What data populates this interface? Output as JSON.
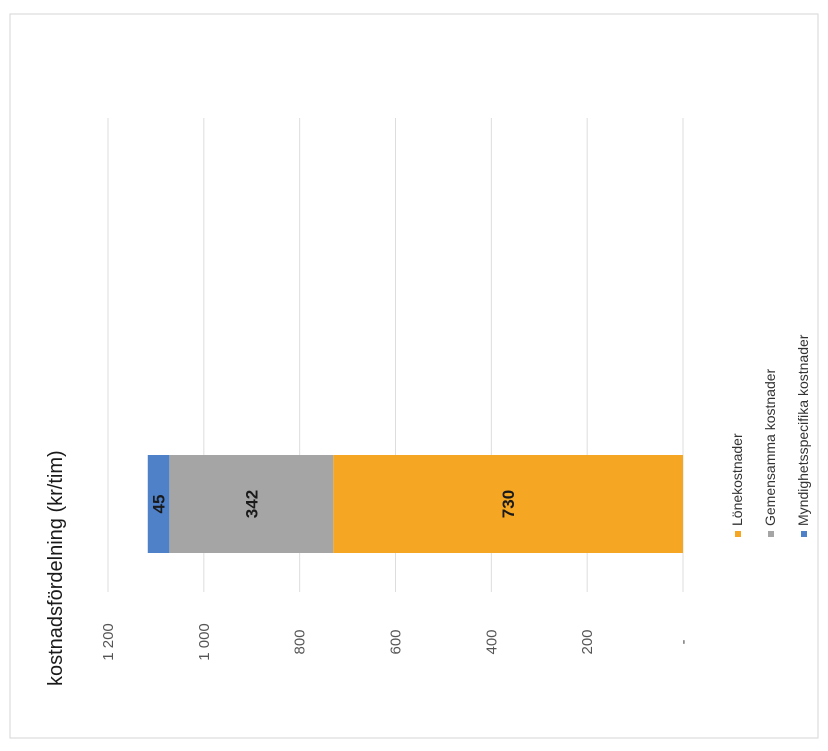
{
  "chart_data": {
    "type": "bar",
    "orientation": "vertical-stacked",
    "title": "kostnadsfördelning (kr/tim)",
    "categories": [
      ""
    ],
    "series": [
      {
        "name": "Lönekostnader",
        "values": [
          730
        ],
        "color": "#f5a623"
      },
      {
        "name": "Gemensamma kostnader",
        "values": [
          342
        ],
        "color": "#a5a5a5"
      },
      {
        "name": "Myndighetsspecifika kostnader",
        "values": [
          45
        ],
        "color": "#4f81c8"
      }
    ],
    "data_labels": [
      "730",
      "342",
      "45"
    ],
    "ylim": [
      0,
      1200
    ],
    "yticks": [
      "-",
      "200",
      "400",
      "600",
      "800",
      "1 000",
      "1 200"
    ],
    "grid": true,
    "legend": "bottom",
    "xlabel": "",
    "ylabel": ""
  }
}
